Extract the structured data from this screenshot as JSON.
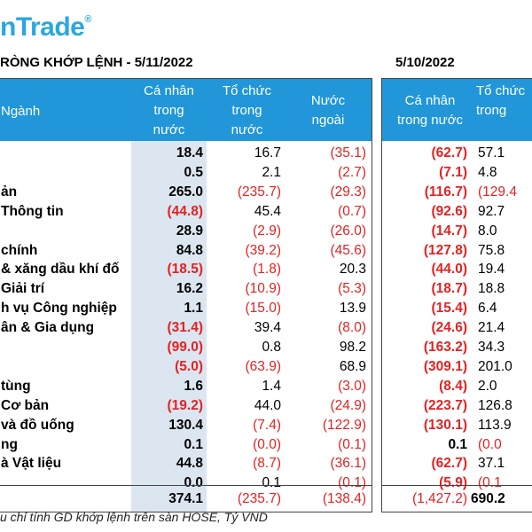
{
  "brand": {
    "name": "nTrade",
    "reg": "®",
    "color": "#2aa7df"
  },
  "left_title": "RÒNG KHỚP LỆNH - 5/11/2022",
  "right_title": "5/10/2022",
  "left_headers": {
    "sector": "Ngành",
    "individual": [
      "Cá nhân",
      "trong",
      "nước"
    ],
    "institution": [
      "Tổ chức",
      "trong",
      "nước"
    ],
    "foreign": [
      "Nước",
      "ngoài"
    ]
  },
  "right_headers": {
    "individual": [
      "Cá nhân",
      "trong nước"
    ],
    "institution": [
      "Tổ chức",
      "trong"
    ]
  },
  "rows": [
    {
      "sector": "",
      "l": [
        "18.4",
        "16.7",
        "(35.1)"
      ],
      "r": [
        "(62.7)",
        "57.1"
      ]
    },
    {
      "sector": "",
      "l": [
        "0.5",
        "2.1",
        "(2.7)"
      ],
      "r": [
        "(7.1)",
        "4.8"
      ]
    },
    {
      "sector": "ản",
      "l": [
        "265.0",
        "(235.7)",
        "(29.3)"
      ],
      "r": [
        "(116.7)",
        "(129.4"
      ]
    },
    {
      "sector": "Thông tin",
      "l": [
        "(44.8)",
        "45.4",
        "(0.7)"
      ],
      "r": [
        "(92.6)",
        "92.7"
      ]
    },
    {
      "sector": "",
      "l": [
        "28.9",
        "(2.9)",
        "(26.0)"
      ],
      "r": [
        "(14.7)",
        "8.0"
      ]
    },
    {
      "sector": "chính",
      "l": [
        "84.8",
        "(39.2)",
        "(45.6)"
      ],
      "r": [
        "(127.8)",
        "75.8"
      ]
    },
    {
      "sector": "& xăng dầu khí đố",
      "l": [
        "(18.5)",
        "(1.8)",
        "20.3"
      ],
      "r": [
        "(44.0)",
        "19.4"
      ]
    },
    {
      "sector": "Giải trí",
      "l": [
        "16.2",
        "(10.9)",
        "(5.3)"
      ],
      "r": [
        "(18.7)",
        "18.8"
      ]
    },
    {
      "sector": "h vụ Công nghiệp",
      "l": [
        "1.1",
        "(15.0)",
        "13.9"
      ],
      "r": [
        "(15.4)",
        "6.4"
      ]
    },
    {
      "sector": "ân & Gia dụng",
      "l": [
        "(31.4)",
        "39.4",
        "(8.0)"
      ],
      "r": [
        "(24.6)",
        "21.4"
      ]
    },
    {
      "sector": "",
      "l": [
        "(99.0)",
        "0.8",
        "98.2"
      ],
      "r": [
        "(163.2)",
        "34.3"
      ]
    },
    {
      "sector": "",
      "l": [
        "(5.0)",
        "(63.9)",
        "68.9"
      ],
      "r": [
        "(309.1)",
        "201.0"
      ]
    },
    {
      "sector": "tùng",
      "l": [
        "1.6",
        "1.4",
        "(3.0)"
      ],
      "r": [
        "(8.4)",
        "2.0"
      ]
    },
    {
      "sector": "Cơ bản",
      "l": [
        "(19.2)",
        "44.0",
        "(24.9)"
      ],
      "r": [
        "(223.7)",
        "126.8"
      ]
    },
    {
      "sector": "và đồ uống",
      "l": [
        "130.4",
        "(7.4)",
        "(122.9)"
      ],
      "r": [
        "(130.1)",
        "113.9"
      ]
    },
    {
      "sector": "ng",
      "l": [
        "0.1",
        "(0.0)",
        "(0.1)"
      ],
      "r": [
        "0.1",
        "(0.0"
      ]
    },
    {
      "sector": "à Vật liệu",
      "l": [
        "44.8",
        "(8.7)",
        "(36.1)"
      ],
      "r": [
        "(62.7)",
        "37.1"
      ]
    },
    {
      "sector": "",
      "l": [
        "0.0",
        "0.1",
        "(0.1)"
      ],
      "r": [
        "(5.9)",
        "(0.1"
      ]
    }
  ],
  "totals": {
    "l": [
      "374.1",
      "(235.7)",
      "(138.4)"
    ],
    "r": [
      "(1,427.2)",
      "690.2"
    ]
  },
  "footnote": "u chỉ tính GD khớp lệnh trên sàn HOSE, Tỷ VND",
  "colors": {
    "header_bg": "#2196d9",
    "highlight_col": "#dce6f1",
    "negative": "#e32222"
  }
}
